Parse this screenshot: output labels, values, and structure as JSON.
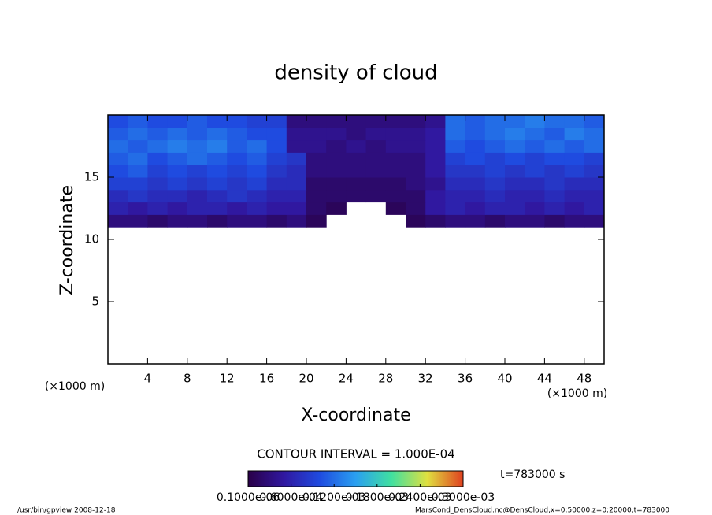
{
  "chart_data": {
    "type": "heatmap",
    "title": "density of cloud",
    "x_label": "X-coordinate",
    "y_label": "Z-coordinate",
    "x_unit": "(×1000 m)",
    "y_unit": "(×1000 m)",
    "contour_note": "CONTOUR INTERVAL = 1.000E-04",
    "time_note": "t=783000 s",
    "footer_left": "/usr/bin/gpview  2008-12-18",
    "footer_right": "MarsCond_DensCloud.nc@DensCloud,x=0:50000,z=0:20000,t=783000",
    "x": [
      1,
      3,
      5,
      7,
      9,
      11,
      13,
      15,
      17,
      19,
      21,
      23,
      25,
      27,
      29,
      31,
      33,
      35,
      37,
      39,
      41,
      43,
      45,
      47,
      49
    ],
    "y": [
      10.5,
      11.5,
      12.5,
      13.5,
      14.5,
      15.5,
      16.5,
      17.5,
      18.5,
      19.5
    ],
    "cell_width": 2,
    "cell_height": 1,
    "values": [
      [
        null,
        null,
        null,
        null,
        null,
        null,
        null,
        null,
        null,
        null,
        null,
        null,
        null,
        null,
        null,
        null,
        null,
        null,
        null,
        null,
        null,
        null,
        null,
        null,
        null
      ],
      [
        3e-05,
        3e-05,
        2e-05,
        3e-05,
        3e-05,
        2e-05,
        3e-05,
        3e-05,
        2e-05,
        3e-05,
        1e-05,
        null,
        null,
        null,
        null,
        1e-05,
        2e-05,
        3e-05,
        3e-05,
        2e-05,
        3e-05,
        3e-05,
        2e-05,
        3e-05,
        3e-05
      ],
      [
        6e-05,
        5e-05,
        6e-05,
        5e-05,
        6e-05,
        6e-05,
        5e-05,
        6e-05,
        5e-05,
        5e-05,
        2e-05,
        1e-05,
        null,
        null,
        1e-05,
        2e-05,
        5e-05,
        6e-05,
        5e-05,
        6e-05,
        6e-05,
        5e-05,
        6e-05,
        5e-05,
        6e-05
      ],
      [
        7e-05,
        8e-05,
        7e-05,
        7e-05,
        6e-05,
        7e-05,
        8e-05,
        7e-05,
        6e-05,
        6e-05,
        2e-05,
        2e-05,
        2e-05,
        2e-05,
        2e-05,
        2e-05,
        5e-05,
        6e-05,
        6e-05,
        7e-05,
        6e-05,
        6e-05,
        7e-05,
        6e-05,
        6e-05
      ],
      [
        9e-05,
        9e-05,
        8e-05,
        9e-05,
        8e-05,
        9e-05,
        8e-05,
        9e-05,
        7e-05,
        7e-05,
        2e-05,
        2e-05,
        2e-05,
        2e-05,
        2e-05,
        3e-05,
        4e-05,
        7e-05,
        7e-05,
        8e-05,
        7e-05,
        7e-05,
        8e-05,
        7e-05,
        7e-05
      ],
      [
        0.0001,
        0.00011,
        9e-05,
        0.0001,
        9e-05,
        0.0001,
        9e-05,
        0.0001,
        8e-05,
        7e-05,
        3e-05,
        3e-05,
        3e-05,
        3e-05,
        3e-05,
        3e-05,
        5e-05,
        8e-05,
        8e-05,
        9e-05,
        8e-05,
        9e-05,
        8e-05,
        9e-05,
        8e-05
      ],
      [
        0.00011,
        0.00012,
        0.0001,
        0.00011,
        0.00012,
        0.00011,
        0.0001,
        0.00011,
        9e-05,
        8e-05,
        3e-05,
        3e-05,
        3e-05,
        3e-05,
        3e-05,
        3e-05,
        5e-05,
        9e-05,
        0.0001,
        9e-05,
        0.0001,
        9e-05,
        0.0001,
        0.0001,
        9e-05
      ],
      [
        0.00012,
        0.00011,
        0.00012,
        0.00013,
        0.00012,
        0.00013,
        0.00011,
        0.00012,
        0.0001,
        4e-05,
        4e-05,
        3e-05,
        4e-05,
        3e-05,
        4e-05,
        4e-05,
        5e-05,
        0.00011,
        0.0001,
        0.00011,
        0.00012,
        0.00011,
        0.00012,
        0.00011,
        0.00012
      ],
      [
        0.00011,
        0.00012,
        0.00011,
        0.00012,
        0.00011,
        0.00012,
        0.00011,
        0.0001,
        0.0001,
        4e-05,
        4e-05,
        4e-05,
        3e-05,
        4e-05,
        4e-05,
        4e-05,
        5e-05,
        0.00012,
        0.00011,
        0.00012,
        0.00013,
        0.00012,
        0.00011,
        0.00013,
        0.00012
      ],
      [
        0.0001,
        0.00011,
        0.0001,
        0.0001,
        0.00011,
        0.0001,
        0.0001,
        9e-05,
        9e-05,
        3e-05,
        3e-05,
        3e-05,
        3e-05,
        3e-05,
        3e-05,
        3e-05,
        4e-05,
        0.00012,
        0.00011,
        0.00012,
        0.00012,
        0.00013,
        0.00012,
        0.00012,
        0.00011
      ]
    ],
    "xlim": [
      0,
      50
    ],
    "ylim": [
      0,
      20
    ],
    "xticks": [
      4,
      8,
      12,
      16,
      20,
      24,
      28,
      32,
      36,
      40,
      44,
      48
    ],
    "yticks": [
      5,
      10,
      15
    ],
    "clim": [
      0,
      0.0003
    ],
    "colorscale": [
      "#2a0048",
      "#3018a0",
      "#1f4be0",
      "#2a9ff0",
      "#40e0a0",
      "#e0e040",
      "#e04020"
    ],
    "cticks": [
      {
        "value": 1e-07,
        "label": "0.1000e-06"
      },
      {
        "value": 6e-05,
        "label": "0.6000e-04"
      },
      {
        "value": 0.00012,
        "label": "0.1200e-03"
      },
      {
        "value": 0.00018,
        "label": "0.1800e-03"
      },
      {
        "value": 0.00024,
        "label": "0.2400e-03"
      },
      {
        "value": 0.0003,
        "label": "0.3000e-03"
      }
    ]
  }
}
